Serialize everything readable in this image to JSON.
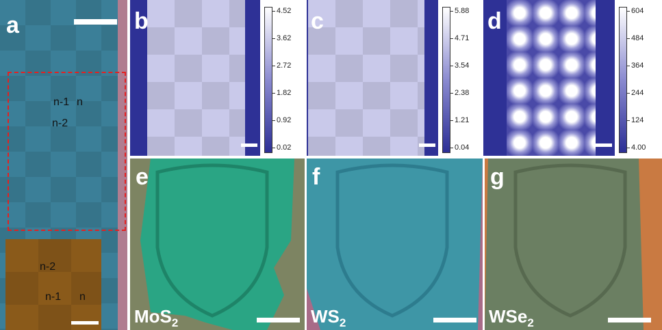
{
  "panels": {
    "a": {
      "label": "a",
      "annotations": [
        "n-1",
        "n",
        "n-2"
      ],
      "inset_annotations": [
        "n-2",
        "n-1",
        "n"
      ]
    },
    "b": {
      "label": "b",
      "colorbar_ticks": [
        "4.52",
        "3.62",
        "2.72",
        "1.82",
        "0.92",
        "0.02"
      ]
    },
    "c": {
      "label": "c",
      "colorbar_ticks": [
        "5.88",
        "4.71",
        "3.54",
        "2.38",
        "1.21",
        "0.04"
      ]
    },
    "d": {
      "label": "d",
      "colorbar_ticks": [
        "604",
        "484",
        "364",
        "244",
        "124",
        "4.00"
      ]
    },
    "e": {
      "label": "e",
      "material": {
        "base": "MoS",
        "sub": "2"
      }
    },
    "f": {
      "label": "f",
      "material": {
        "base": "WS",
        "sub": "2"
      }
    },
    "g": {
      "label": "g",
      "material": {
        "base": "WSe",
        "sub": "2"
      }
    }
  }
}
